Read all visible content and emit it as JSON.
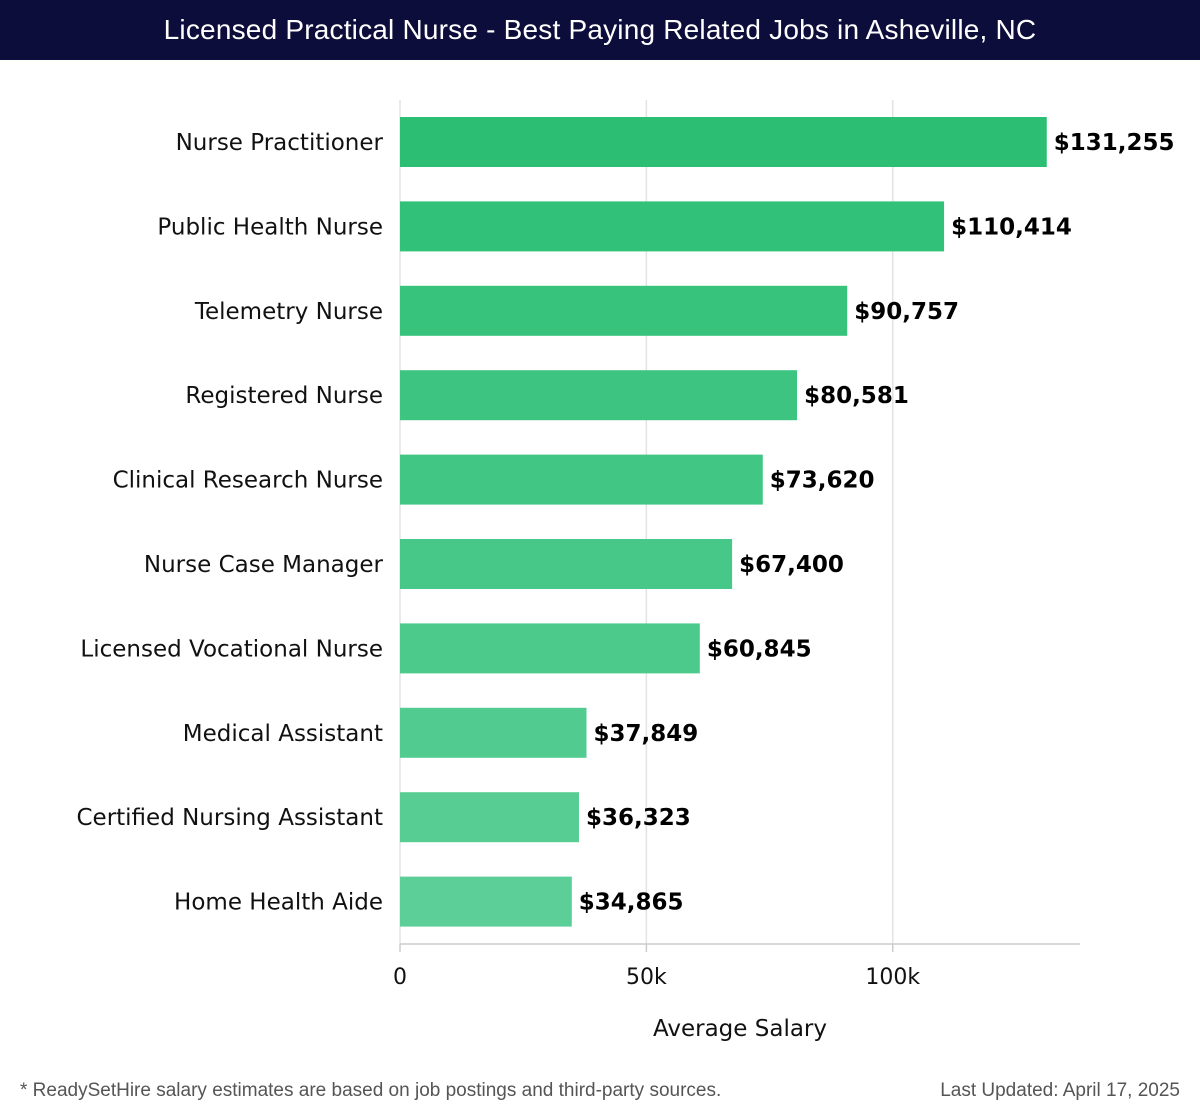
{
  "header": {
    "title": "Licensed Practical Nurse - Best Paying Related Jobs in Asheville, NC"
  },
  "chart_data": {
    "type": "bar",
    "orientation": "horizontal",
    "title": "Licensed Practical Nurse - Best Paying Related Jobs in Asheville, NC",
    "xlabel": "Average Salary",
    "ylabel": "",
    "categories": [
      "Nurse Practitioner",
      "Public Health Nurse",
      "Telemetry Nurse",
      "Registered Nurse",
      "Clinical Research Nurse",
      "Nurse Case Manager",
      "Licensed Vocational Nurse",
      "Medical Assistant",
      "Certified Nursing Assistant",
      "Home Health Aide"
    ],
    "values": [
      131255,
      110414,
      90757,
      80581,
      73620,
      67400,
      60845,
      37849,
      36323,
      34865
    ],
    "value_labels": [
      "$131,255",
      "$110,414",
      "$90,757",
      "$80,581",
      "$73,620",
      "$67,400",
      "$60,845",
      "$37,849",
      "$36,323",
      "$34,865"
    ],
    "xlim": [
      0,
      138000
    ],
    "xticks": [
      0,
      50000,
      100000
    ],
    "xtick_labels": [
      "0",
      "50k",
      "100k"
    ],
    "grid": true,
    "colors": {
      "bar_top": "#2cbf74",
      "bar_bottom": "#5ccf98",
      "grid": "#e3e3e3",
      "axis": "#cccccc"
    }
  },
  "footer": {
    "note": "* ReadySetHire salary estimates are based on job postings and third-party sources.",
    "updated": "Last Updated: April 17, 2025"
  }
}
